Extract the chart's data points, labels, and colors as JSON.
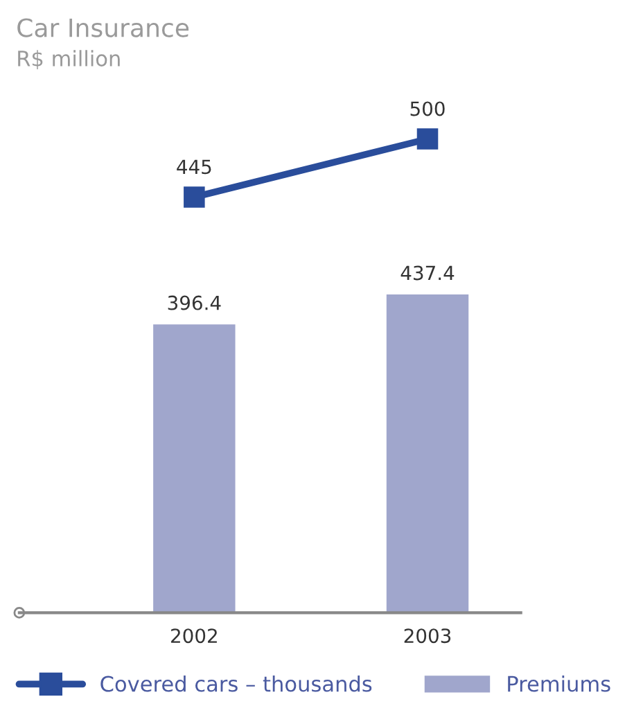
{
  "chart_data": [
    {
      "type": "line",
      "title": "Car Insurance",
      "subtitle": "R$ million",
      "categories": [
        "2002",
        "2003"
      ],
      "series": [
        {
          "name": "Covered cars – thousands",
          "color": "#2a4d9b",
          "values": [
            445,
            500
          ]
        }
      ],
      "marker": "square",
      "data_labels": true,
      "tick_labels": false,
      "legend": "bottom"
    },
    {
      "type": "bar",
      "categories": [
        "2002",
        "2003"
      ],
      "series": [
        {
          "name": "Premiums",
          "color": "#a0a6cc",
          "values": [
            396.4,
            437.4
          ]
        }
      ],
      "data_labels": true
    }
  ]
}
